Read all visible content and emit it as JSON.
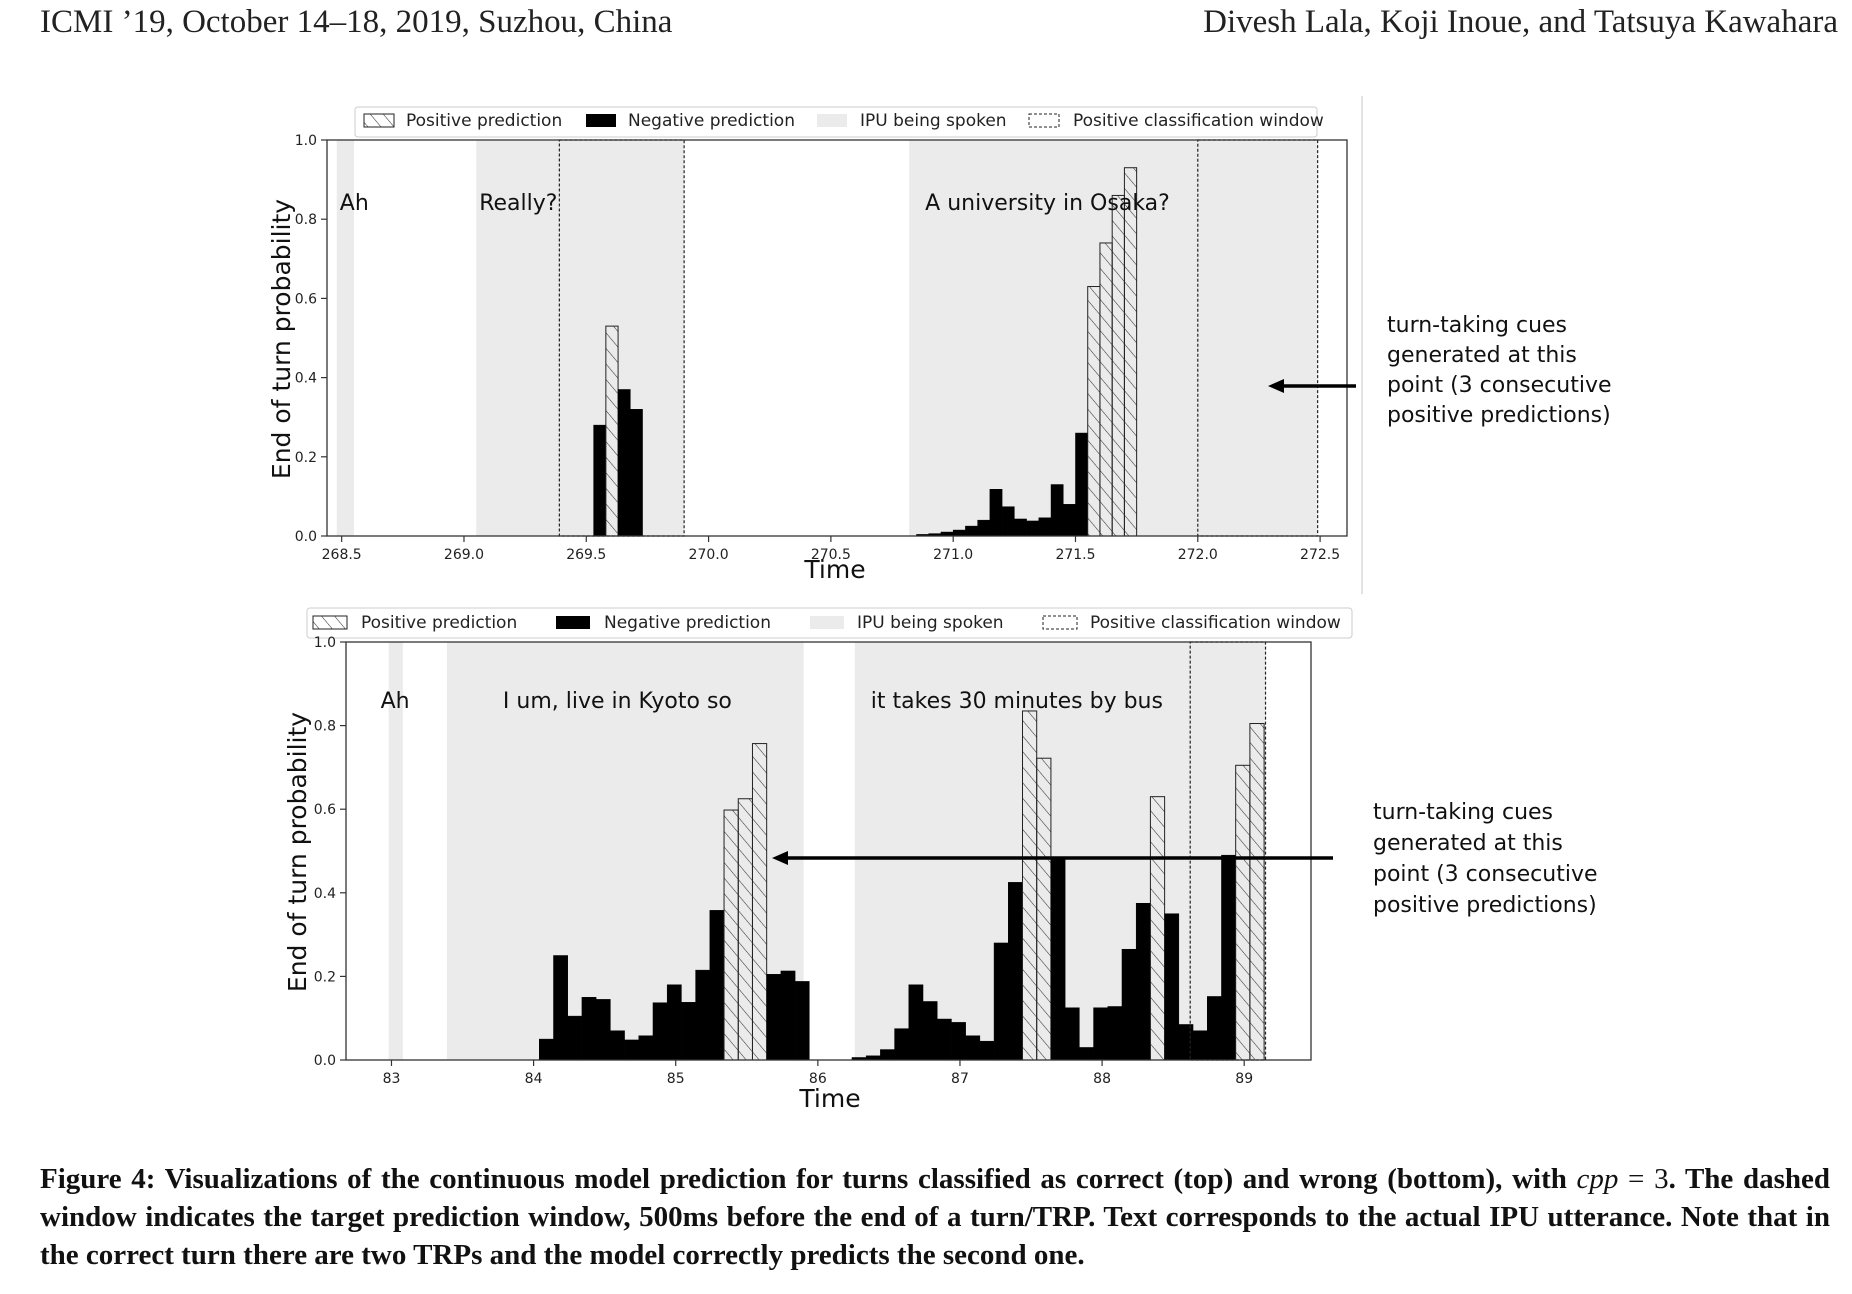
{
  "header": {
    "left": "ICMI ’19, October 14–18, 2019, Suzhou, China",
    "right": "Divesh Lala, Koji Inoue, and Tatsuya Kawahara"
  },
  "legend": {
    "positive": "Positive prediction",
    "negative": "Negative prediction",
    "ipu": "IPU being spoken",
    "window": "Positive classification window"
  },
  "annotations": {
    "cue_lines": [
      "turn-taking cues",
      "generated at this",
      "point (3 consecutive",
      "positive predictions)"
    ]
  },
  "chart_data": [
    {
      "type": "bar",
      "panel": "top",
      "xlabel": "Time",
      "ylabel": "End of turn probability",
      "xlim": [
        268.44,
        272.61
      ],
      "ylim": [
        0,
        1
      ],
      "xticks": [
        "268.5",
        "269.0",
        "269.5",
        "270.0",
        "270.5",
        "271.0",
        "271.5",
        "272.0",
        "272.5"
      ],
      "xtick_values": [
        268.5,
        269.0,
        269.5,
        270.0,
        270.5,
        271.0,
        271.5,
        272.0,
        272.5
      ],
      "yticks": [
        "0.0",
        "0.2",
        "0.4",
        "0.6",
        "0.8",
        "1.0"
      ],
      "ipu_spans": [
        {
          "start": 268.48,
          "end": 268.55,
          "text": "Ah"
        },
        {
          "start": 269.05,
          "end": 269.9,
          "text": "Really?"
        },
        {
          "start": 270.82,
          "end": 272.49,
          "text": "A university in Osaka?"
        }
      ],
      "windows": [
        [
          269.39,
          269.9
        ],
        [
          272.0,
          272.49
        ]
      ],
      "bar_width": 0.05,
      "bars": [
        {
          "x": 269.53,
          "y": 0.28,
          "pos": false
        },
        {
          "x": 269.58,
          "y": 0.53,
          "pos": true
        },
        {
          "x": 269.63,
          "y": 0.37,
          "pos": false
        },
        {
          "x": 269.68,
          "y": 0.32,
          "pos": false
        },
        {
          "x": 270.85,
          "y": 0.004,
          "pos": false
        },
        {
          "x": 270.9,
          "y": 0.006,
          "pos": false
        },
        {
          "x": 270.95,
          "y": 0.01,
          "pos": false
        },
        {
          "x": 271.0,
          "y": 0.015,
          "pos": false
        },
        {
          "x": 271.05,
          "y": 0.025,
          "pos": false
        },
        {
          "x": 271.1,
          "y": 0.04,
          "pos": false
        },
        {
          "x": 271.15,
          "y": 0.118,
          "pos": false
        },
        {
          "x": 271.2,
          "y": 0.074,
          "pos": false
        },
        {
          "x": 271.25,
          "y": 0.043,
          "pos": false
        },
        {
          "x": 271.3,
          "y": 0.038,
          "pos": false
        },
        {
          "x": 271.35,
          "y": 0.046,
          "pos": false
        },
        {
          "x": 271.4,
          "y": 0.13,
          "pos": false
        },
        {
          "x": 271.45,
          "y": 0.08,
          "pos": false
        },
        {
          "x": 271.5,
          "y": 0.26,
          "pos": false
        },
        {
          "x": 271.55,
          "y": 0.63,
          "pos": true
        },
        {
          "x": 271.6,
          "y": 0.74,
          "pos": true
        },
        {
          "x": 271.65,
          "y": 0.86,
          "pos": true
        },
        {
          "x": 271.7,
          "y": 0.93,
          "pos": true
        }
      ]
    },
    {
      "type": "bar",
      "panel": "bottom",
      "xlabel": "Time",
      "ylabel": "End of turn probability",
      "xlim": [
        82.68,
        89.47
      ],
      "ylim": [
        0,
        1
      ],
      "xticks": [
        "83",
        "84",
        "85",
        "86",
        "87",
        "88",
        "89"
      ],
      "xtick_values": [
        83,
        84,
        85,
        86,
        87,
        88,
        89
      ],
      "yticks": [
        "0.0",
        "0.2",
        "0.4",
        "0.6",
        "0.8",
        "1.0"
      ],
      "ipu_spans": [
        {
          "start": 82.98,
          "end": 83.08,
          "text": "Ah"
        },
        {
          "start": 83.39,
          "end": 85.9,
          "text": "I um, live in Kyoto so"
        },
        {
          "start": 86.26,
          "end": 89.15,
          "text": "it takes 30 minutes by bus"
        }
      ],
      "windows": [
        [
          88.62,
          89.15
        ]
      ],
      "bar_width": 0.1,
      "bars": [
        {
          "x": 84.04,
          "y": 0.05,
          "pos": false
        },
        {
          "x": 84.14,
          "y": 0.25,
          "pos": false
        },
        {
          "x": 84.24,
          "y": 0.105,
          "pos": false
        },
        {
          "x": 84.34,
          "y": 0.15,
          "pos": false
        },
        {
          "x": 84.44,
          "y": 0.145,
          "pos": false
        },
        {
          "x": 84.54,
          "y": 0.07,
          "pos": false
        },
        {
          "x": 84.64,
          "y": 0.048,
          "pos": false
        },
        {
          "x": 84.74,
          "y": 0.058,
          "pos": false
        },
        {
          "x": 84.84,
          "y": 0.137,
          "pos": false
        },
        {
          "x": 84.94,
          "y": 0.18,
          "pos": false
        },
        {
          "x": 85.04,
          "y": 0.138,
          "pos": false
        },
        {
          "x": 85.14,
          "y": 0.215,
          "pos": false
        },
        {
          "x": 85.24,
          "y": 0.358,
          "pos": false
        },
        {
          "x": 85.34,
          "y": 0.598,
          "pos": true
        },
        {
          "x": 85.44,
          "y": 0.625,
          "pos": true
        },
        {
          "x": 85.54,
          "y": 0.757,
          "pos": true
        },
        {
          "x": 85.64,
          "y": 0.205,
          "pos": false
        },
        {
          "x": 85.74,
          "y": 0.213,
          "pos": false
        },
        {
          "x": 85.84,
          "y": 0.188,
          "pos": false
        },
        {
          "x": 86.24,
          "y": 0.006,
          "pos": false
        },
        {
          "x": 86.34,
          "y": 0.01,
          "pos": false
        },
        {
          "x": 86.44,
          "y": 0.025,
          "pos": false
        },
        {
          "x": 86.54,
          "y": 0.075,
          "pos": false
        },
        {
          "x": 86.64,
          "y": 0.18,
          "pos": false
        },
        {
          "x": 86.74,
          "y": 0.14,
          "pos": false
        },
        {
          "x": 86.84,
          "y": 0.098,
          "pos": false
        },
        {
          "x": 86.94,
          "y": 0.09,
          "pos": false
        },
        {
          "x": 87.04,
          "y": 0.058,
          "pos": false
        },
        {
          "x": 87.14,
          "y": 0.045,
          "pos": false
        },
        {
          "x": 87.24,
          "y": 0.28,
          "pos": false
        },
        {
          "x": 87.34,
          "y": 0.425,
          "pos": false
        },
        {
          "x": 87.44,
          "y": 0.835,
          "pos": true
        },
        {
          "x": 87.54,
          "y": 0.722,
          "pos": true
        },
        {
          "x": 87.64,
          "y": 0.485,
          "pos": false
        },
        {
          "x": 87.74,
          "y": 0.125,
          "pos": false
        },
        {
          "x": 87.84,
          "y": 0.03,
          "pos": false
        },
        {
          "x": 87.94,
          "y": 0.125,
          "pos": false
        },
        {
          "x": 88.04,
          "y": 0.128,
          "pos": false
        },
        {
          "x": 88.14,
          "y": 0.265,
          "pos": false
        },
        {
          "x": 88.24,
          "y": 0.375,
          "pos": false
        },
        {
          "x": 88.34,
          "y": 0.63,
          "pos": true
        },
        {
          "x": 88.44,
          "y": 0.35,
          "pos": false
        },
        {
          "x": 88.54,
          "y": 0.085,
          "pos": false
        },
        {
          "x": 88.64,
          "y": 0.07,
          "pos": false
        },
        {
          "x": 88.74,
          "y": 0.152,
          "pos": false
        },
        {
          "x": 88.84,
          "y": 0.49,
          "pos": false
        },
        {
          "x": 88.94,
          "y": 0.705,
          "pos": true
        },
        {
          "x": 89.04,
          "y": 0.805,
          "pos": true
        }
      ]
    }
  ],
  "caption": {
    "part1": "Figure 4: Visualizations of the continuous model prediction for turns classified as correct (top) and wrong (bottom), with",
    "var": "cpp",
    "eq": " = 3",
    "part2": ". The dashed window indicates the target prediction window, 500ms before the end of a turn/TRP. Text corresponds to the actual IPU utterance. Note that in the correct turn there are two TRPs and the model correctly predicts the second one."
  }
}
